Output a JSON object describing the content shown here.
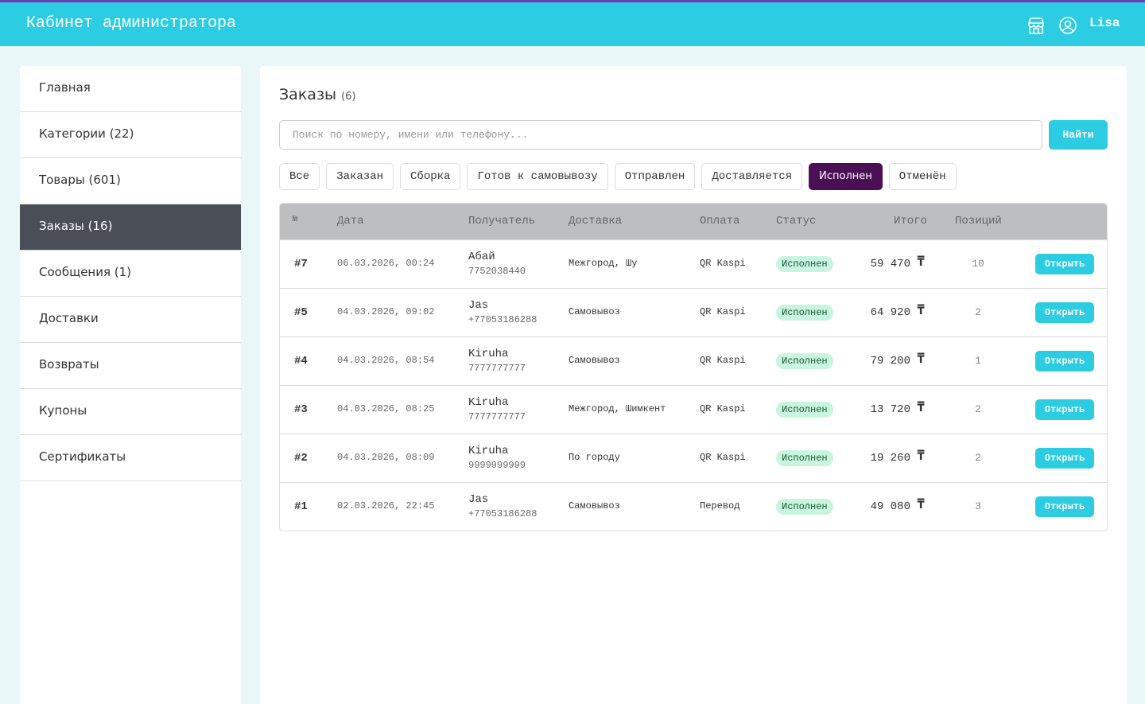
{
  "header": {
    "title": "Кабинет администратора",
    "user": "Lisa"
  },
  "sidebar": {
    "items": [
      "Главная",
      "Категории (22)",
      "Товары (601)",
      "Заказы (16)",
      "Сообщения (1)",
      "Доставки",
      "Возвраты",
      "Купоны",
      "Сертификаты"
    ],
    "active": 3
  },
  "content": {
    "title": "Заказы",
    "count": "(6)",
    "search_placeholder": "Поиск по номеру, имени или телефону...",
    "search_button": "Найти",
    "filters": [
      "Все",
      "Заказан",
      "Сборка",
      "Готов к самовывозу",
      "Отправлен",
      "Доставляется",
      "Исполнен",
      "Отменён"
    ],
    "active_filter": 6
  },
  "table": {
    "columns": [
      "№",
      "Дата",
      "Получатель",
      "Доставка",
      "Оплата",
      "Статус",
      "Итого",
      "Позиций"
    ],
    "currency": "₸",
    "action": "Открыть",
    "rows": [
      {
        "id": "#7",
        "date": "06.03.2026, 00:24",
        "name": "Абай",
        "phone": "7752038440",
        "delivery": "Межгород, Шу",
        "payment": "QR Kaspi",
        "status": "Исполнен",
        "total": "59 470",
        "items": "10"
      },
      {
        "id": "#5",
        "date": "04.03.2026, 09:02",
        "name": "Jas",
        "phone": "+77053186288",
        "delivery": "Самовывоз",
        "payment": "QR Kaspi",
        "status": "Исполнен",
        "total": "64 920",
        "items": "2"
      },
      {
        "id": "#4",
        "date": "04.03.2026, 08:54",
        "name": "Kiruha",
        "phone": "7777777777",
        "delivery": "Самовывоз",
        "payment": "QR Kaspi",
        "status": "Исполнен",
        "total": "79 200",
        "items": "1"
      },
      {
        "id": "#3",
        "date": "04.03.2026, 08:25",
        "name": "Kiruha",
        "phone": "7777777777",
        "delivery": "Межгород, Шимкент",
        "payment": "QR Kaspi",
        "status": "Исполнен",
        "total": "13 720",
        "items": "2"
      },
      {
        "id": "#2",
        "date": "04.03.2026, 08:09",
        "name": "Kiruha",
        "phone": "9999999999",
        "delivery": "По городу",
        "payment": "QR Kaspi",
        "status": "Исполнен",
        "total": "19 260",
        "items": "2"
      },
      {
        "id": "#1",
        "date": "02.03.2026, 22:45",
        "name": "Jas",
        "phone": "+77053186288",
        "delivery": "Самовывоз",
        "payment": "Перевод",
        "status": "Исполнен",
        "total": "49 080",
        "items": "3"
      }
    ]
  }
}
